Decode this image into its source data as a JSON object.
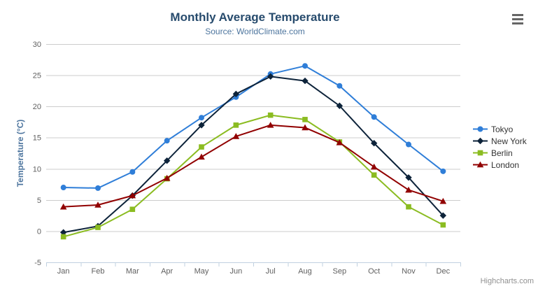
{
  "chart_data": {
    "type": "line",
    "title": "Monthly Average Temperature",
    "subtitle": "Source: WorldClimate.com",
    "ylabel": "Temperature (°C)",
    "xlabel": "",
    "categories": [
      "Jan",
      "Feb",
      "Mar",
      "Apr",
      "May",
      "Jun",
      "Jul",
      "Aug",
      "Sep",
      "Oct",
      "Nov",
      "Dec"
    ],
    "ylim": [
      -5,
      30
    ],
    "yticks": [
      30,
      25,
      20,
      15,
      10,
      5,
      0,
      -5
    ],
    "grid": "horizontal",
    "legend_position": "right",
    "series": [
      {
        "name": "Tokyo",
        "color": "#2f7ed8",
        "marker": "circle",
        "values": [
          7.0,
          6.9,
          9.5,
          14.5,
          18.2,
          21.5,
          25.2,
          26.5,
          23.3,
          18.3,
          13.9,
          9.6
        ]
      },
      {
        "name": "New York",
        "color": "#0d233a",
        "marker": "diamond",
        "values": [
          -0.2,
          0.8,
          5.7,
          11.3,
          17.0,
          22.0,
          24.8,
          24.1,
          20.1,
          14.1,
          8.6,
          2.5
        ]
      },
      {
        "name": "Berlin",
        "color": "#8bbc21",
        "marker": "square",
        "values": [
          -0.9,
          0.6,
          3.5,
          8.4,
          13.5,
          17.0,
          18.6,
          17.9,
          14.3,
          9.0,
          3.9,
          1.0
        ]
      },
      {
        "name": "London",
        "color": "#910000",
        "marker": "triangle",
        "values": [
          3.9,
          4.2,
          5.7,
          8.5,
          11.9,
          15.2,
          17.0,
          16.6,
          14.2,
          10.3,
          6.6,
          4.8
        ]
      }
    ]
  },
  "credits": {
    "label": "Highcharts.com"
  },
  "theme": {
    "title_color": "#274b6d",
    "subtitle_color": "#4d759e",
    "axis_title_color": "#4d759e",
    "tick_label_color": "#606060",
    "grid_color": "#cccccc",
    "axis_line_color": "#c0d0e0",
    "legend_text_color": "#333333",
    "credits_color": "#909090",
    "background": "#ffffff"
  }
}
